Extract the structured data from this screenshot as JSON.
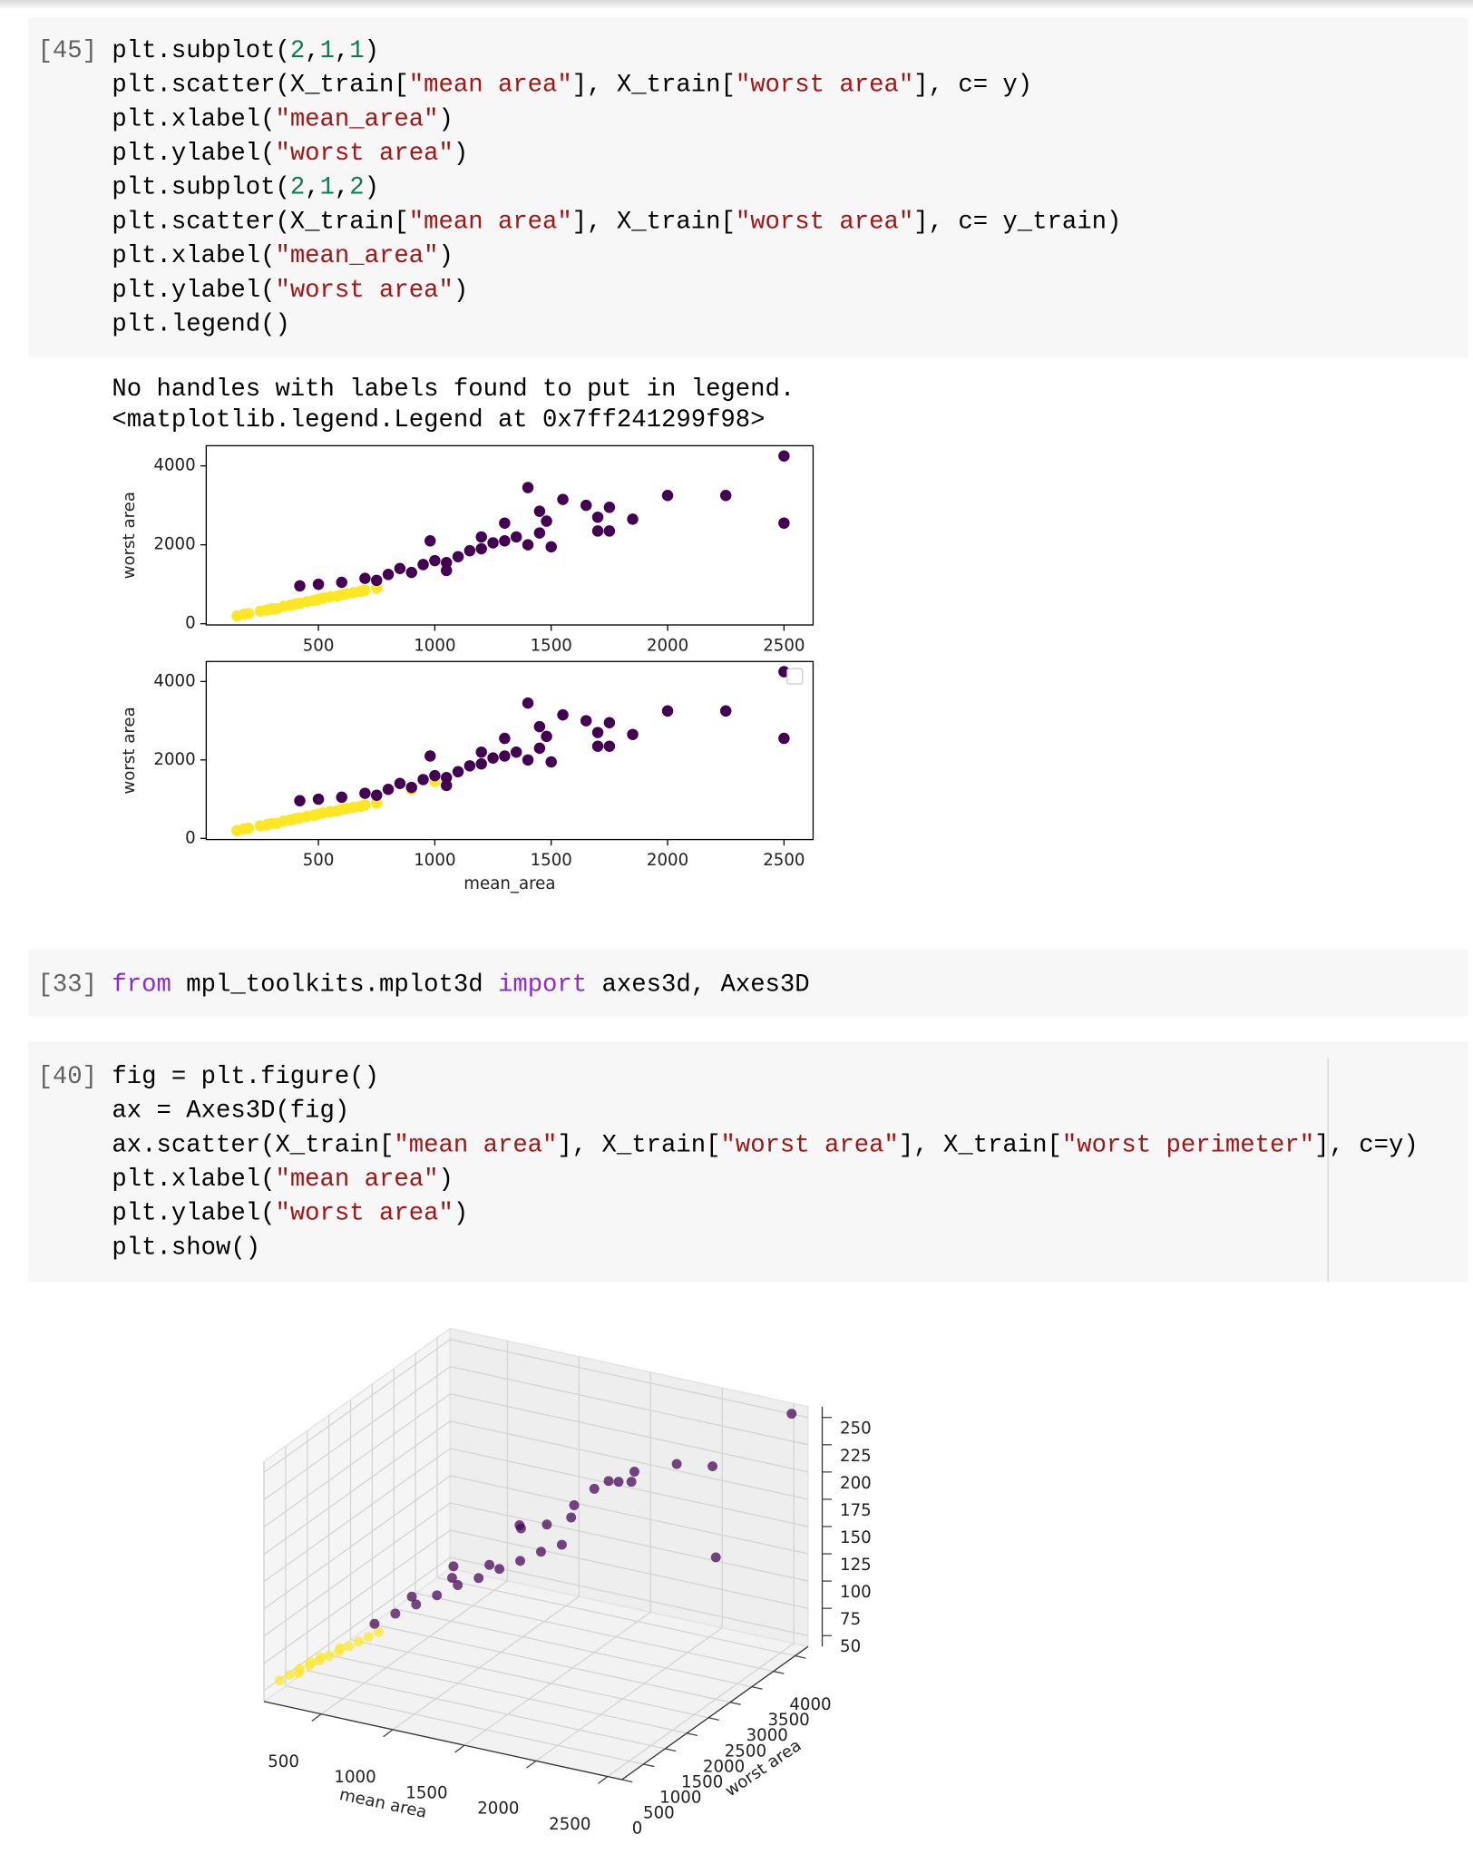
{
  "token_colors": {
    "plain": "#000000",
    "string": "#a31515",
    "number": "#117a55",
    "keyword": "#8a2ad0"
  },
  "cells": [
    {
      "prompt": "[45]",
      "code": [
        [
          {
            "text": "plt.subplot(",
            "kind": "plain"
          },
          {
            "text": "2",
            "kind": "number"
          },
          {
            "text": ",",
            "kind": "plain"
          },
          {
            "text": "1",
            "kind": "number"
          },
          {
            "text": ",",
            "kind": "plain"
          },
          {
            "text": "1",
            "kind": "number"
          },
          {
            "text": ")",
            "kind": "plain"
          }
        ],
        [
          {
            "text": "plt.scatter(X_train[",
            "kind": "plain"
          },
          {
            "text": "\"mean area\"",
            "kind": "string"
          },
          {
            "text": "], X_train[",
            "kind": "plain"
          },
          {
            "text": "\"worst area\"",
            "kind": "string"
          },
          {
            "text": "], c= y)",
            "kind": "plain"
          }
        ],
        [
          {
            "text": "plt.xlabel(",
            "kind": "plain"
          },
          {
            "text": "\"mean_area\"",
            "kind": "string"
          },
          {
            "text": ")",
            "kind": "plain"
          }
        ],
        [
          {
            "text": "plt.ylabel(",
            "kind": "plain"
          },
          {
            "text": "\"worst area\"",
            "kind": "string"
          },
          {
            "text": ")",
            "kind": "plain"
          }
        ],
        [
          {
            "text": "plt.subplot(",
            "kind": "plain"
          },
          {
            "text": "2",
            "kind": "number"
          },
          {
            "text": ",",
            "kind": "plain"
          },
          {
            "text": "1",
            "kind": "number"
          },
          {
            "text": ",",
            "kind": "plain"
          },
          {
            "text": "2",
            "kind": "number"
          },
          {
            "text": ")",
            "kind": "plain"
          }
        ],
        [
          {
            "text": "plt.scatter(X_train[",
            "kind": "plain"
          },
          {
            "text": "\"mean area\"",
            "kind": "string"
          },
          {
            "text": "], X_train[",
            "kind": "plain"
          },
          {
            "text": "\"worst area\"",
            "kind": "string"
          },
          {
            "text": "], c= y_train)",
            "kind": "plain"
          }
        ],
        [
          {
            "text": "plt.xlabel(",
            "kind": "plain"
          },
          {
            "text": "\"mean_area\"",
            "kind": "string"
          },
          {
            "text": ")",
            "kind": "plain"
          }
        ],
        [
          {
            "text": "plt.ylabel(",
            "kind": "plain"
          },
          {
            "text": "\"worst area\"",
            "kind": "string"
          },
          {
            "text": ")",
            "kind": "plain"
          }
        ],
        [
          {
            "text": "plt.legend()",
            "kind": "plain"
          }
        ]
      ],
      "output_text": [
        "No handles with labels found to put in legend.",
        "<matplotlib.legend.Legend at 0x7ff241299f98>"
      ],
      "charts": [
        {
          "type": "scatter",
          "ylabel": "worst area",
          "xlim": [
            18,
            2625
          ],
          "ylim": [
            -30,
            4510
          ],
          "xticks": [
            500,
            1000,
            1500,
            2000,
            2500
          ],
          "yticks": [
            0,
            2000,
            4000
          ],
          "series": [
            {
              "color": "#fde725",
              "x": [
                150,
                180,
                200,
                250,
                280,
                300,
                320,
                350,
                380,
                400,
                420,
                450,
                480,
                500,
                520,
                550,
                580,
                600,
                620,
                650,
                680,
                700,
                750
              ],
              "values": [
                200,
                240,
                260,
                320,
                350,
                380,
                380,
                440,
                470,
                500,
                520,
                560,
                590,
                620,
                650,
                680,
                700,
                740,
                760,
                790,
                820,
                850,
                900
              ]
            },
            {
              "color": "#440154",
              "x": [
                420,
                500,
                600,
                700,
                750,
                800,
                850,
                900,
                950,
                980,
                1000,
                1050,
                1050,
                1100,
                1150,
                1200,
                1200,
                1250,
                1300,
                1300,
                1350,
                1400,
                1400,
                1450,
                1450,
                1480,
                1500,
                1550,
                1650,
                1700,
                1700,
                1750,
                1750,
                1850,
                2000,
                2250,
                2500,
                2500
              ],
              "values": [
                960,
                1000,
                1050,
                1150,
                1100,
                1250,
                1400,
                1300,
                1500,
                2100,
                1600,
                1550,
                1350,
                1700,
                1850,
                1900,
                2200,
                2050,
                2100,
                2550,
                2200,
                2000,
                3450,
                2300,
                2850,
                2600,
                1950,
                3150,
                3000,
                2700,
                2350,
                2950,
                2350,
                2650,
                3250,
                3250,
                4250,
                2550
              ]
            }
          ]
        },
        {
          "type": "scatter",
          "ylabel": "worst area",
          "xlabel": "mean_area",
          "legend": "upper right",
          "xlim": [
            18,
            2625
          ],
          "ylim": [
            -30,
            4510
          ],
          "xticks": [
            500,
            1000,
            1500,
            2000,
            2500
          ],
          "yticks": [
            0,
            2000,
            4000
          ],
          "series": [
            {
              "color": "#fde725",
              "x": [
                150,
                180,
                200,
                250,
                280,
                300,
                320,
                350,
                380,
                400,
                420,
                450,
                480,
                500,
                520,
                550,
                580,
                600,
                620,
                650,
                680,
                700,
                750,
                900,
                1000
              ],
              "values": [
                200,
                240,
                260,
                320,
                350,
                380,
                380,
                440,
                470,
                500,
                520,
                560,
                590,
                620,
                650,
                680,
                700,
                740,
                760,
                790,
                820,
                850,
                900,
                1250,
                1450
              ]
            },
            {
              "color": "#440154",
              "x": [
                420,
                500,
                600,
                700,
                750,
                800,
                850,
                900,
                950,
                980,
                1000,
                1050,
                1050,
                1100,
                1150,
                1200,
                1200,
                1250,
                1300,
                1300,
                1350,
                1400,
                1400,
                1450,
                1450,
                1480,
                1500,
                1550,
                1650,
                1700,
                1700,
                1750,
                1750,
                1850,
                2000,
                2250,
                2500,
                2500
              ],
              "values": [
                960,
                1000,
                1050,
                1150,
                1100,
                1250,
                1400,
                1300,
                1500,
                2100,
                1600,
                1550,
                1350,
                1700,
                1850,
                1900,
                2200,
                2050,
                2100,
                2550,
                2200,
                2000,
                3450,
                2300,
                2850,
                2600,
                1950,
                3150,
                3000,
                2700,
                2350,
                2950,
                2350,
                2650,
                3250,
                3250,
                4250,
                2550
              ]
            }
          ]
        }
      ]
    },
    {
      "prompt": "[33]",
      "code": [
        [
          {
            "text": "from",
            "kind": "keyword"
          },
          {
            "text": " mpl_toolkits.mplot3d ",
            "kind": "plain"
          },
          {
            "text": "import",
            "kind": "keyword"
          },
          {
            "text": " axes3d, Axes3D",
            "kind": "plain"
          }
        ]
      ]
    },
    {
      "prompt": "[40]",
      "code": [
        [
          {
            "text": "fig = plt.figure()",
            "kind": "plain"
          }
        ],
        [
          {
            "text": "ax = Axes3D(fig)",
            "kind": "plain"
          }
        ],
        [
          {
            "text": "ax.scatter(X_train[",
            "kind": "plain"
          },
          {
            "text": "\"mean area\"",
            "kind": "string"
          },
          {
            "text": "], X_train[",
            "kind": "plain"
          },
          {
            "text": "\"worst area\"",
            "kind": "string"
          },
          {
            "text": "], X_train[",
            "kind": "plain"
          },
          {
            "text": "\"worst perimeter\"",
            "kind": "string"
          },
          {
            "text": "], c=y)",
            "kind": "plain"
          }
        ],
        [
          {
            "text": "plt.xlabel(",
            "kind": "plain"
          },
          {
            "text": "\"mean area\"",
            "kind": "string"
          },
          {
            "text": ")",
            "kind": "plain"
          }
        ],
        [
          {
            "text": "plt.ylabel(",
            "kind": "plain"
          },
          {
            "text": "\"worst area\"",
            "kind": "string"
          },
          {
            "text": ")",
            "kind": "plain"
          }
        ],
        [
          {
            "text": "plt.show()",
            "kind": "plain"
          }
        ]
      ],
      "chart": {
        "type": "scatter3d",
        "xlabel": "mean area",
        "ylabel": "worst area",
        "xlim": [
          100,
          2600
        ],
        "ylim": [
          0,
          4300
        ],
        "zlim": [
          40,
          260
        ],
        "xticks": [
          500,
          1000,
          1500,
          2000,
          2500
        ],
        "yticks": [
          0,
          500,
          1000,
          1500,
          2000,
          2500,
          3000,
          3500,
          4000
        ],
        "zticks": [
          50,
          75,
          100,
          125,
          150,
          175,
          200,
          225,
          250
        ],
        "series": [
          {
            "color": "#fde725",
            "x": [
              150,
              200,
              250,
              250,
              300,
              300,
              350,
              350,
              400,
              450,
              450,
              500,
              550,
              600,
              650
            ],
            "y": [
              200,
              260,
              330,
              300,
              390,
              420,
              450,
              480,
              510,
              570,
              600,
              640,
              700,
              760,
              830
            ],
            "values": [
              55,
              60,
              65,
              62,
              68,
              70,
              72,
              74,
              76,
              80,
              82,
              84,
              88,
              92,
              96
            ]
          },
          {
            "color": "#440154",
            "x": [
              600,
              700,
              800,
              800,
              900,
              900,
              1000,
              1000,
              1100,
              1100,
              1200,
              1200,
              1250,
              1300,
              1350,
              1400,
              1450,
              1500,
              1500,
              1550,
              1600,
              1700,
              1750,
              1850,
              2000,
              2250,
              2500,
              2500
            ],
            "y": [
              900,
              1050,
              1200,
              1100,
              1350,
              1700,
              1500,
              1400,
              1650,
              1900,
              1800,
              2300,
              2100,
              1950,
              2400,
              2100,
              2700,
              2250,
              3000,
              2300,
              3000,
              2900,
              3100,
              2700,
              3250,
              3250,
              4250,
              2500
            ],
            "values": [
              100,
              108,
              115,
              125,
              122,
              128,
              130,
              150,
              135,
              140,
              142,
              165,
              175,
              148,
              170,
              155,
              182,
              160,
              190,
              185,
              200,
              205,
              210,
              215,
              220,
              225,
              252,
              170
            ]
          }
        ]
      }
    }
  ]
}
